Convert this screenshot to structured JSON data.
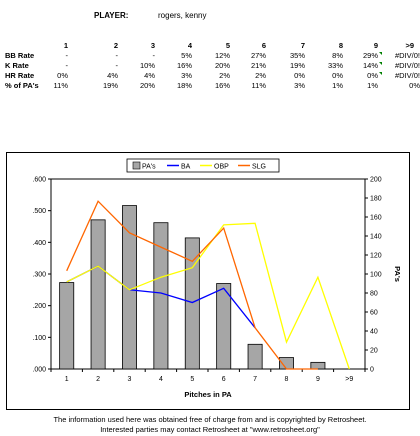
{
  "player": {
    "label": "PLAYER:",
    "name": "rogers, kenny"
  },
  "table": {
    "columns": [
      "1",
      "2",
      "3",
      "4",
      "5",
      "6",
      "7",
      "8",
      "9",
      ">9"
    ],
    "rows": [
      {
        "label": "BB Rate",
        "values": [
          "-",
          "-",
          "-",
          "5%",
          "12%",
          "27%",
          "35%",
          "8%",
          "29%",
          "#DIV/0!"
        ],
        "flag_col": 8
      },
      {
        "label": "K Rate",
        "values": [
          "-",
          "-",
          "10%",
          "16%",
          "20%",
          "21%",
          "19%",
          "33%",
          "14%",
          "#DIV/0!"
        ],
        "flag_col": 8
      },
      {
        "label": "HR Rate",
        "values": [
          "0%",
          "4%",
          "4%",
          "3%",
          "2%",
          "2%",
          "0%",
          "0%",
          "0%",
          "#DIV/0!"
        ],
        "flag_col": 8
      },
      {
        "label": "% of PA's",
        "values": [
          "11%",
          "19%",
          "20%",
          "18%",
          "16%",
          "11%",
          "3%",
          "1%",
          "1%",
          "0%"
        ],
        "flag_col": null
      }
    ],
    "flag_color": "#008000"
  },
  "chart_data": {
    "type": "bar+line",
    "categories": [
      "1",
      "2",
      "3",
      "4",
      "5",
      "6",
      "7",
      "8",
      "9",
      ">9"
    ],
    "xlabel": "Pitches in PA",
    "ylabel_right": "PA's",
    "left_axis": {
      "min": 0,
      "max": 0.6,
      "step": 0.1,
      "tick_labels": [
        ".000",
        ".100",
        ".200",
        ".300",
        ".400",
        ".500",
        ".600"
      ]
    },
    "right_axis": {
      "min": 0,
      "max": 200,
      "step": 20,
      "tick_labels": [
        "0",
        "20",
        "40",
        "60",
        "80",
        "100",
        "120",
        "140",
        "160",
        "180",
        "200"
      ]
    },
    "bars": {
      "name": "PA's",
      "axis": "right",
      "color": "#a6a6a6",
      "values": [
        91,
        157,
        172,
        154,
        138,
        90,
        26,
        12,
        7,
        0
      ]
    },
    "lines": [
      {
        "name": "BA",
        "axis": "left",
        "color": "#0000ff",
        "values": [
          0.275,
          0.325,
          0.25,
          0.24,
          0.21,
          0.255,
          0.13,
          null,
          null,
          null
        ]
      },
      {
        "name": "OBP",
        "axis": "left",
        "color": "#ffff00",
        "values": [
          0.275,
          0.325,
          0.25,
          0.29,
          0.32,
          0.455,
          0.46,
          0.085,
          0.29,
          0.0
        ]
      },
      {
        "name": "SLG",
        "axis": "left",
        "color": "#ff6600",
        "values": [
          0.31,
          0.53,
          0.43,
          0.385,
          0.34,
          0.445,
          0.13,
          0.0,
          0.0,
          null
        ]
      }
    ],
    "legend": {
      "position": "top",
      "items": [
        "PA's",
        "BA",
        "OBP",
        "SLG"
      ]
    },
    "grid": false
  },
  "footer": {
    "line1": "The information used here was obtained free of charge from and is copyrighted by Retrosheet.",
    "line2": "Interested  parties may contact Retrosheet at \"www.retrosheet.org\""
  }
}
